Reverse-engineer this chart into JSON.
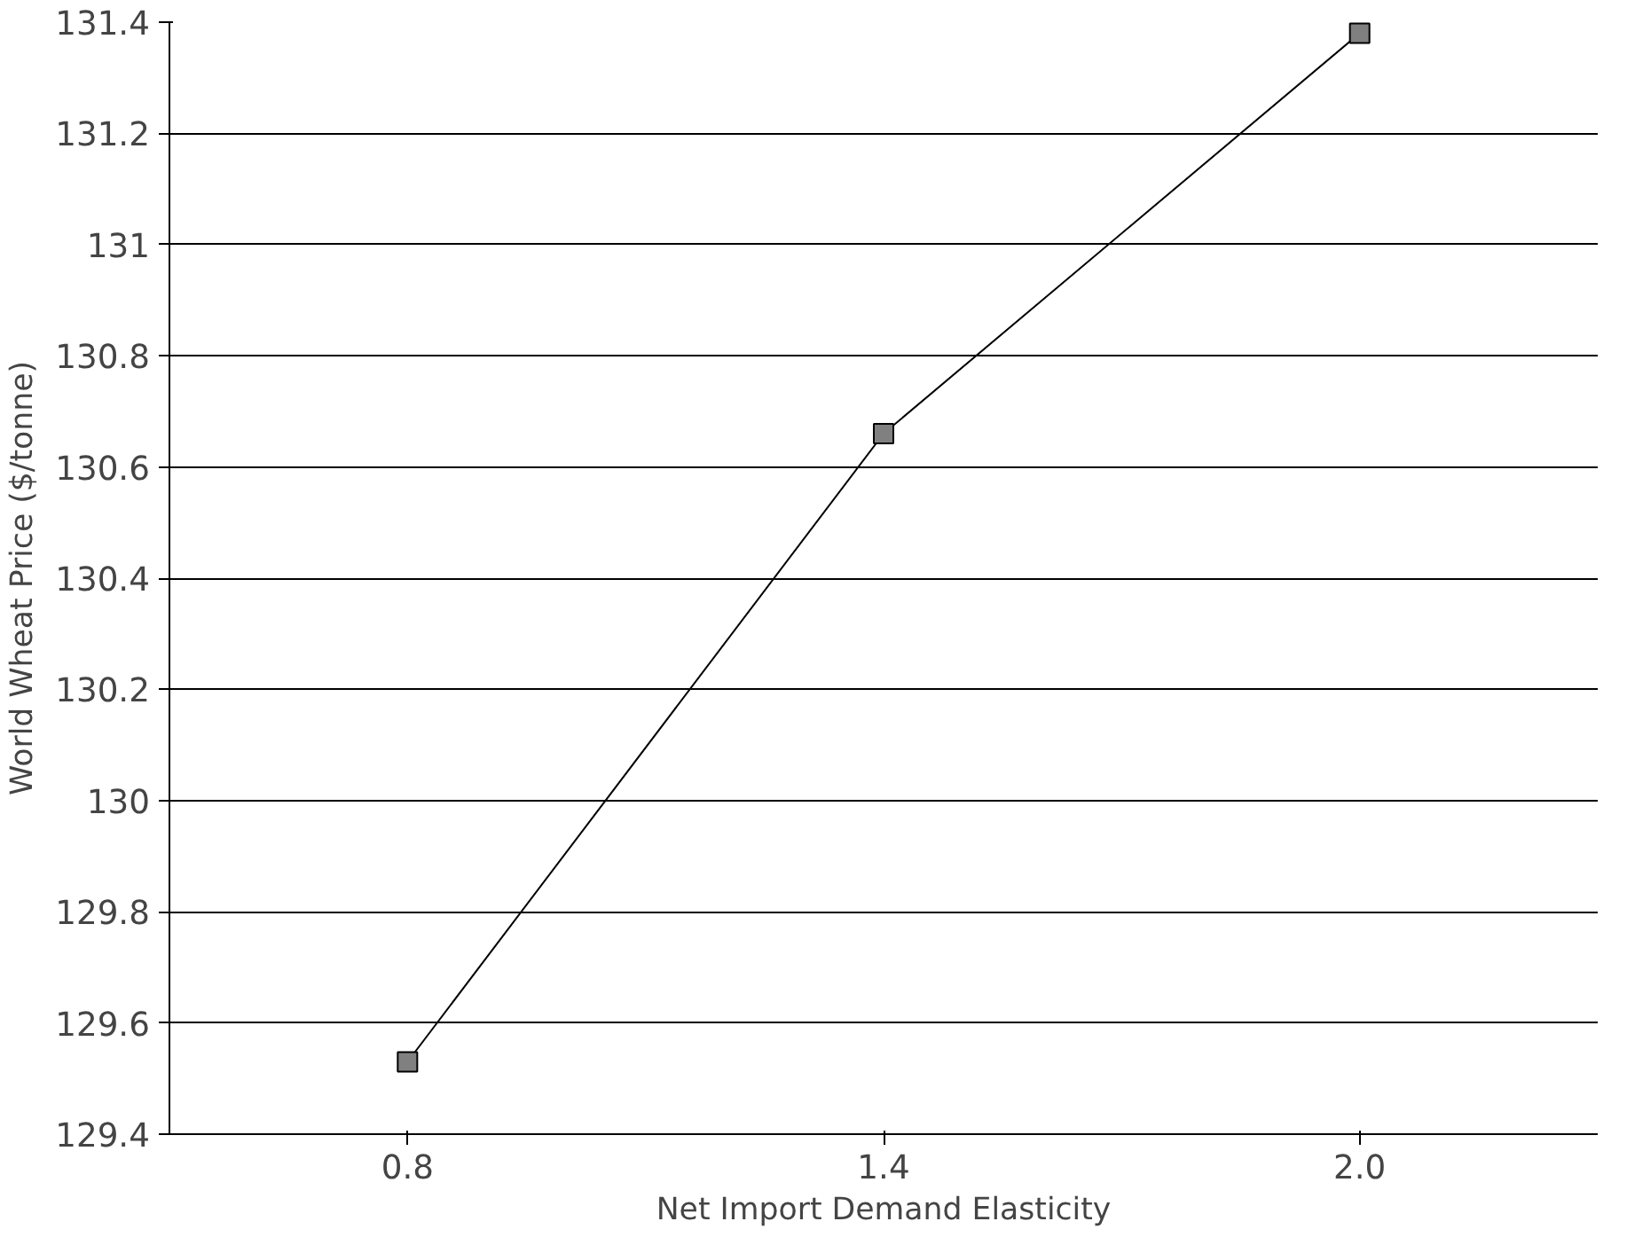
{
  "chart_data": {
    "type": "line",
    "xlabel": "Net Import Demand Elasticity",
    "ylabel": "World Wheat Price ($/tonne)",
    "categories": [
      "0.8",
      "1.4",
      "2.0"
    ],
    "series": [
      {
        "color": "#000000",
        "values": [
          129.53,
          130.66,
          131.38
        ]
      }
    ],
    "ylim": [
      129.4,
      131.4
    ],
    "yticks": [
      {
        "value": 129.4,
        "label": "129.4"
      },
      {
        "value": 129.6,
        "label": "129.6"
      },
      {
        "value": 129.8,
        "label": "129.8"
      },
      130,
      {
        "value": 130.2,
        "label": "130.2"
      },
      {
        "value": 130.4,
        "label": "130.4"
      },
      {
        "value": 130.6,
        "label": "130.6"
      },
      {
        "value": 130.8,
        "label": "130.8"
      },
      131,
      {
        "value": 131.2,
        "label": "131.2"
      },
      {
        "value": 131.4,
        "label": "131.4"
      }
    ],
    "grid": "y",
    "marker": "square",
    "line_style": "solid"
  }
}
